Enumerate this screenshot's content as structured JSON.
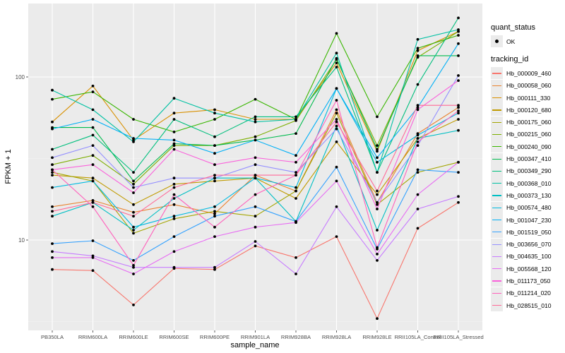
{
  "chart_data": {
    "type": "line",
    "title": "",
    "xlabel": "sample_name",
    "ylabel": "FPKM + 1",
    "yscale": "log10",
    "ylim": [
      2.8,
      300
    ],
    "y_ticks": [
      10,
      100
    ],
    "y_tick_labels": [
      "10",
      "100"
    ],
    "grid": true,
    "legend_position": "right",
    "categories": [
      "PB350LA",
      "RRIM600LA",
      "RRIM600LE",
      "RRIM600SE",
      "RRIM600PE",
      "RRIM901LA",
      "RRIM928BA",
      "RRIM928LA",
      "RRIM928LE",
      "RRII105LA_Control",
      "RRII105LA_Stressed"
    ],
    "shape_legend": {
      "title": "quant_status",
      "entries": [
        "OK"
      ]
    },
    "color_legend_title": "tracking_id",
    "series": [
      {
        "name": "Hb_000009_460",
        "color": "#F8766D",
        "values": [
          6.6,
          6.5,
          4.0,
          6.7,
          6.6,
          9.2,
          7.8,
          10.5,
          3.3,
          11.8,
          17.0
        ]
      },
      {
        "name": "Hb_000058_060",
        "color": "#EA8331",
        "values": [
          16,
          17.5,
          14.8,
          16.5,
          14.5,
          25,
          20,
          63,
          17,
          45,
          65
        ]
      },
      {
        "name": "Hb_000111_330",
        "color": "#D89000",
        "values": [
          53,
          88,
          41,
          60,
          63,
          55,
          55,
          122,
          35,
          145,
          190
        ]
      },
      {
        "name": "Hb_000120_680",
        "color": "#C09B00",
        "values": [
          25,
          24,
          16.5,
          22,
          23,
          24,
          18,
          40,
          19,
          42,
          55
        ]
      },
      {
        "name": "Hb_000175_060",
        "color": "#A3A500",
        "values": [
          26,
          23,
          11,
          13.5,
          15,
          14,
          20,
          60,
          16.5,
          26,
          30
        ]
      },
      {
        "name": "Hb_000215_060",
        "color": "#7CAE00",
        "values": [
          29,
          33,
          22,
          38,
          38,
          43,
          54,
          128,
          38,
          132,
          190
        ]
      },
      {
        "name": "Hb_000240_090",
        "color": "#39B600",
        "values": [
          73,
          81,
          55,
          46,
          55,
          73,
          55,
          185,
          57,
          150,
          180
        ]
      },
      {
        "name": "Hb_000347_410",
        "color": "#00BB4E",
        "values": [
          49,
          49,
          23,
          39,
          38,
          41,
          45,
          130,
          36,
          135,
          135
        ]
      },
      {
        "name": "Hb_000349_290",
        "color": "#00BF7D",
        "values": [
          36,
          44,
          26,
          55,
          43,
          57,
          57,
          115,
          26,
          90,
          230
        ]
      },
      {
        "name": "Hb_000368_010",
        "color": "#00C1A3",
        "values": [
          83,
          63,
          40,
          74,
          60,
          53,
          55,
          140,
          26,
          170,
          195
        ]
      },
      {
        "name": "Hb_000373_130",
        "color": "#00BFC4",
        "values": [
          14,
          17,
          11.5,
          18,
          24,
          24,
          13,
          50,
          11.5,
          42,
          47
        ]
      },
      {
        "name": "Hb_000574_480",
        "color": "#00BAE0",
        "values": [
          21,
          23,
          12,
          14,
          16,
          24,
          21,
          85,
          30,
          44,
          60
        ]
      },
      {
        "name": "Hb_001047_230",
        "color": "#00B0F6",
        "values": [
          48,
          55,
          42,
          41,
          34,
          41,
          33,
          85,
          32,
          65,
          160
        ]
      },
      {
        "name": "Hb_001519_050",
        "color": "#35A2FF",
        "values": [
          9.5,
          9.9,
          7.5,
          10.5,
          14,
          16,
          13,
          28,
          8.8,
          27,
          26
        ]
      },
      {
        "name": "Hb_003656_070",
        "color": "#9590FF",
        "values": [
          32,
          38,
          21,
          24,
          24,
          29,
          26,
          48,
          17,
          38,
          102
        ]
      },
      {
        "name": "Hb_004635_100",
        "color": "#C77CFF",
        "values": [
          8.5,
          8.0,
          6.8,
          6.8,
          6.8,
          9.8,
          6.2,
          16,
          7.5,
          15.5,
          18.5
        ]
      },
      {
        "name": "Hb_005568_120",
        "color": "#E76BF3",
        "values": [
          7.8,
          7.8,
          6.2,
          8.5,
          10.5,
          12,
          12.8,
          23,
          8.2,
          19,
          30
        ]
      },
      {
        "name": "Hb_011173_050",
        "color": "#FA62DB",
        "values": [
          27,
          29,
          19.5,
          36,
          29,
          32,
          30,
          55,
          15.5,
          63,
          95
        ]
      },
      {
        "name": "Hb_011214_020",
        "color": "#FF62BC",
        "values": [
          27,
          16,
          7.0,
          19,
          12,
          19,
          25,
          72,
          9,
          40,
          62
        ]
      },
      {
        "name": "Hb_028515_010",
        "color": "#FF6A98",
        "values": [
          15,
          17,
          14,
          21,
          25,
          25,
          25,
          53,
          20,
          67,
          67
        ]
      }
    ]
  }
}
